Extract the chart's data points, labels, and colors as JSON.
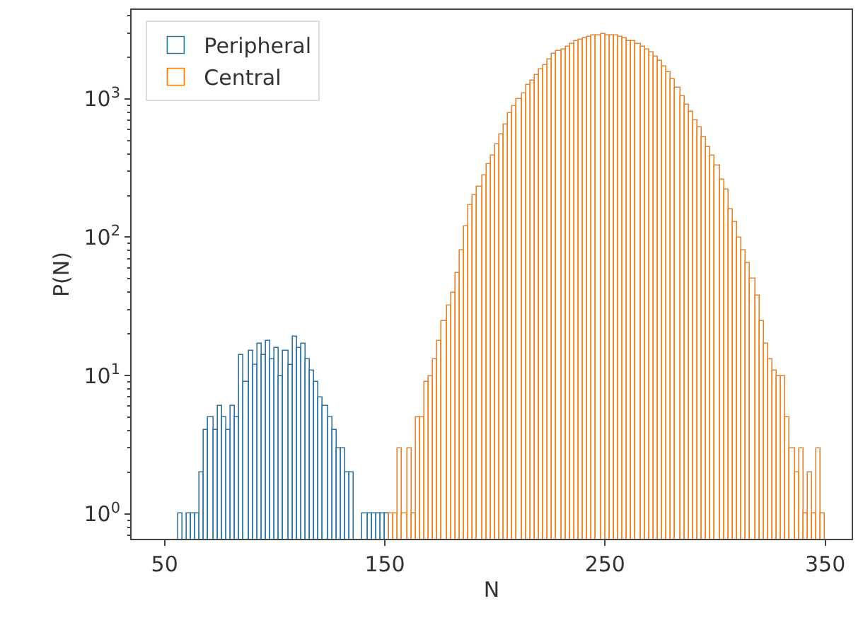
{
  "chart_data": {
    "type": "histogram",
    "xlabel": "N",
    "ylabel": "P(N)",
    "log": "y",
    "legend": "top left",
    "xlim": [
      35,
      362
    ],
    "xticks": [
      50,
      150,
      250,
      350
    ],
    "ylim": [
      0.66,
      4400
    ],
    "yticks": [
      {
        "value": 1,
        "label": "10$^{0}$"
      },
      {
        "value": 10,
        "label": "10$^{1}$"
      },
      {
        "value": 100,
        "label": "10$^{2}$"
      },
      {
        "value": 1000,
        "label": "10$^{3}$"
      }
    ],
    "bins": [
      56,
      58,
      60,
      62,
      64,
      66,
      68,
      70,
      72,
      74,
      76,
      78,
      80,
      82,
      84,
      86,
      88,
      90,
      92,
      94,
      96,
      98,
      100,
      102,
      104,
      106,
      108,
      110,
      112,
      114,
      116,
      118,
      120,
      122,
      124,
      126,
      128,
      130,
      132,
      134,
      136,
      138,
      140,
      142,
      144,
      146,
      148,
      150,
      152,
      154,
      156,
      158,
      160,
      162,
      164,
      166,
      168,
      170,
      172,
      174,
      176,
      178,
      180,
      182,
      184,
      186,
      188,
      190,
      192,
      194,
      196,
      198,
      200,
      202,
      204,
      206,
      208,
      210,
      212,
      214,
      216,
      218,
      220,
      222,
      224,
      226,
      228,
      230,
      232,
      234,
      236,
      238,
      240,
      242,
      244,
      246,
      248,
      250,
      252,
      254,
      256,
      258,
      260,
      262,
      264,
      266,
      268,
      270,
      272,
      274,
      276,
      278,
      280,
      282,
      284,
      286,
      288,
      290,
      292,
      294,
      296,
      298,
      300,
      302,
      304,
      306,
      308,
      310,
      312,
      314,
      316,
      318,
      320,
      322,
      324,
      326,
      328,
      330,
      332,
      334,
      336,
      338,
      340,
      342,
      344,
      346,
      348,
      350
    ],
    "series": [
      {
        "name": "Peripheral",
        "color": "#1f77b4",
        "values": [
          1,
          null,
          1,
          1,
          1,
          2,
          4,
          5,
          4,
          6,
          5,
          4,
          6,
          5,
          14,
          9,
          15,
          12,
          17,
          14,
          18,
          13,
          16,
          10,
          15,
          12,
          19,
          16,
          17,
          13,
          11,
          9,
          7,
          6,
          5,
          4,
          3,
          3,
          2,
          2,
          null,
          null,
          1,
          1,
          1,
          1,
          1,
          1,
          null,
          null,
          null,
          null,
          null,
          null,
          null,
          null,
          null,
          null,
          null,
          null,
          null,
          null,
          null,
          null,
          null,
          null,
          null,
          null,
          null,
          null,
          null,
          null,
          null,
          null,
          null,
          null,
          null,
          null,
          null,
          null,
          null,
          null,
          null,
          null,
          null,
          null,
          null,
          null,
          null,
          null,
          null,
          null,
          null,
          null,
          null,
          null,
          null,
          null,
          null,
          null,
          null,
          null,
          null,
          null,
          null,
          null,
          null,
          null,
          null,
          null,
          null,
          null,
          null,
          null,
          null,
          null,
          null,
          null,
          null,
          null,
          null,
          null,
          null,
          null,
          null,
          null,
          null,
          null,
          null,
          null,
          null,
          null,
          null,
          null,
          null,
          null,
          null,
          null,
          null,
          null,
          null,
          null,
          null,
          null,
          null,
          null,
          null
        ]
      },
      {
        "name": "Central",
        "color": "#ff7f0e",
        "values": [
          null,
          null,
          null,
          null,
          null,
          null,
          null,
          null,
          null,
          null,
          null,
          null,
          null,
          null,
          null,
          null,
          null,
          null,
          null,
          null,
          null,
          null,
          null,
          null,
          null,
          null,
          null,
          null,
          null,
          null,
          null,
          null,
          null,
          null,
          null,
          null,
          null,
          null,
          null,
          null,
          null,
          null,
          null,
          null,
          null,
          null,
          null,
          null,
          1,
          1,
          3,
          1,
          3,
          1,
          5,
          5,
          9,
          10,
          13,
          18,
          25,
          32,
          40,
          55,
          80,
          120,
          170,
          200,
          230,
          280,
          340,
          390,
          470,
          550,
          660,
          790,
          880,
          1000,
          1100,
          1250,
          1360,
          1500,
          1650,
          1750,
          1950,
          2100,
          2200,
          2300,
          2400,
          2500,
          2650,
          2700,
          2750,
          2800,
          2850,
          2900,
          2950,
          2900,
          2900,
          2850,
          2800,
          2750,
          2650,
          2600,
          2500,
          2400,
          2300,
          2150,
          2000,
          1900,
          1700,
          1550,
          1400,
          1200,
          1050,
          900,
          800,
          700,
          620,
          530,
          450,
          390,
          330,
          260,
          220,
          160,
          130,
          100,
          80,
          65,
          50,
          38,
          25,
          17,
          13,
          11,
          10,
          10,
          5,
          3,
          2,
          3,
          1,
          2,
          1,
          3,
          1
        ]
      }
    ]
  }
}
